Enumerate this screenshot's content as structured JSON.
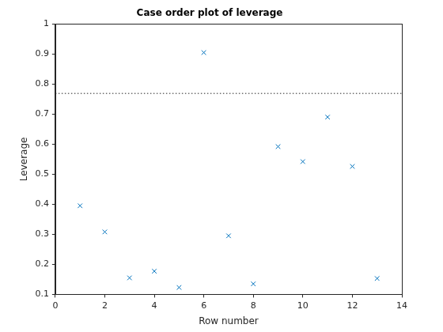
{
  "chart_data": {
    "type": "scatter",
    "title": "Case order plot of leverage",
    "x_label": "Row number",
    "y_label": "Leverage",
    "x": [
      1,
      2,
      3,
      4,
      5,
      6,
      7,
      8,
      9,
      10,
      11,
      12,
      13
    ],
    "values": [
      0.395,
      0.308,
      0.155,
      0.177,
      0.123,
      0.905,
      0.295,
      0.135,
      0.592,
      0.542,
      0.69,
      0.526,
      0.153
    ],
    "color": "#0072bd",
    "marker": "x",
    "reference_line": 0.769,
    "xlim": [
      0,
      14
    ],
    "xticks": [
      0,
      2,
      4,
      6,
      8,
      10,
      12,
      14
    ],
    "ylim": [
      0.1,
      1
    ],
    "yticks": [
      0.1,
      0.2,
      0.3,
      0.4,
      0.5,
      0.6,
      0.7,
      0.8,
      0.9,
      1
    ],
    "grid": false
  }
}
